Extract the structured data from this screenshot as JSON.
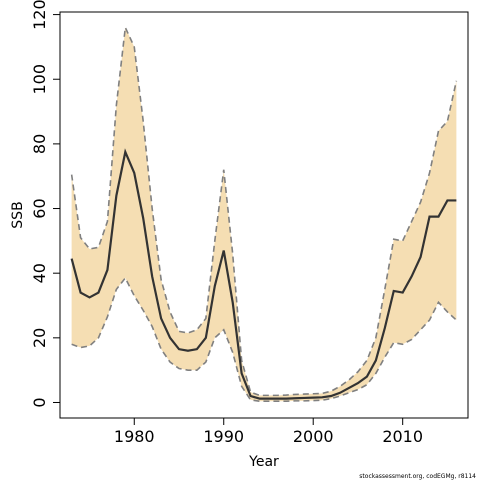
{
  "chart_data": {
    "type": "area",
    "title": "",
    "xlabel": "Year",
    "ylabel": "SSB",
    "credit": "stockassessment.org, codEGMg, r8114",
    "xlim": [
      1971.7,
      2017.3
    ],
    "ylim": [
      -4.8,
      120.8
    ],
    "xticks": [
      1980,
      1990,
      2000,
      2010
    ],
    "yticks": [
      0,
      20,
      40,
      60,
      80,
      100,
      120
    ],
    "grid": false,
    "legend": "none",
    "colors": {
      "band": "#f5deb3",
      "bounds": "#808080",
      "estimate": "#333333"
    },
    "x": [
      1973,
      1974,
      1975,
      1976,
      1977,
      1978,
      1979,
      1980,
      1981,
      1982,
      1983,
      1984,
      1985,
      1986,
      1987,
      1988,
      1989,
      1990,
      1991,
      1992,
      1993,
      1994,
      1995,
      1996,
      1997,
      1998,
      1999,
      2000,
      2001,
      2002,
      2003,
      2004,
      2005,
      2006,
      2007,
      2008,
      2009,
      2010,
      2011,
      2012,
      2013,
      2014,
      2015,
      2016
    ],
    "series": [
      {
        "role": "estimate",
        "values": [
          44.5,
          34,
          32.5,
          34,
          41,
          64,
          77.5,
          71,
          57,
          39,
          26,
          20,
          16.5,
          16,
          16.5,
          20,
          36,
          47,
          31,
          9,
          2,
          1.2,
          1.2,
          1.2,
          1.2,
          1.3,
          1.4,
          1.5,
          1.6,
          2,
          3,
          4.5,
          6,
          8,
          13,
          23,
          34.5,
          34,
          39,
          45,
          57.5,
          57.5,
          62.5,
          62.5
        ]
      },
      {
        "role": "upper",
        "values": [
          70.5,
          51,
          47.5,
          48,
          56,
          92,
          116,
          110,
          87,
          60,
          38,
          28,
          22,
          21.5,
          22.5,
          26,
          50,
          72,
          46,
          13,
          3.2,
          2.2,
          2.2,
          2.2,
          2.3,
          2.5,
          2.6,
          2.7,
          2.8,
          3.5,
          5,
          7,
          9.5,
          13,
          20,
          35,
          50.5,
          50,
          56,
          62,
          71,
          84,
          87,
          99.5
        ]
      },
      {
        "role": "lower",
        "values": [
          18,
          17,
          17.5,
          20,
          26.5,
          35,
          38.5,
          33,
          28.5,
          23.5,
          16.5,
          12.5,
          10.5,
          10,
          10,
          12.5,
          20,
          22.5,
          15.5,
          5,
          0.8,
          0.4,
          0.4,
          0.4,
          0.4,
          0.5,
          0.5,
          0.6,
          0.7,
          1.2,
          2,
          3,
          4,
          5.5,
          9,
          14,
          18.5,
          18,
          19.5,
          22.5,
          25.5,
          31,
          28,
          25.5
        ]
      }
    ]
  }
}
